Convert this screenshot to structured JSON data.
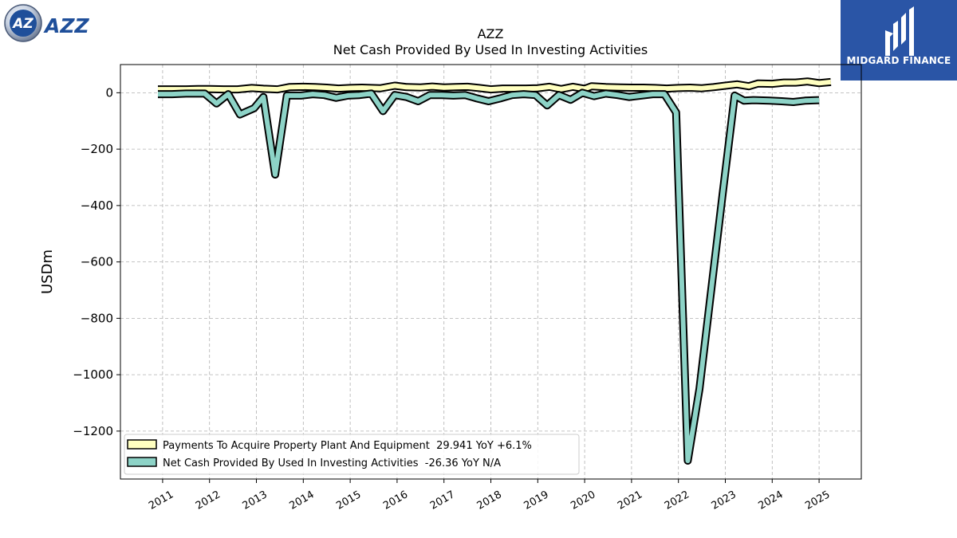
{
  "brand": {
    "ticker_logo_text": "AZZ"
  },
  "sponsor": {
    "name": "MIDGARD FINANCE"
  },
  "chart_data": {
    "type": "line",
    "title": "AZZ",
    "subtitle": "Net Cash Provided By Used In Investing Activities",
    "xlabel": "",
    "ylabel": "USDm",
    "ylim": [
      -1370,
      100
    ],
    "xlim": [
      2010.1,
      2025.9
    ],
    "yticks": [
      0,
      -200,
      -400,
      -600,
      -800,
      -1000,
      -1200
    ],
    "ytick_labels": [
      "0",
      "−200",
      "−400",
      "−600",
      "−800",
      "−1000",
      "−1200"
    ],
    "xticks": [
      "2011",
      "2012",
      "2013",
      "2014",
      "2015",
      "2016",
      "2017",
      "2018",
      "2019",
      "2020",
      "2021",
      "2022",
      "2023",
      "2024",
      "2025"
    ],
    "grid": true,
    "legend_position": "lower-left",
    "series": [
      {
        "name": "Payments To Acquire Property Plant And Equipment  29.941 YoY +6.1%",
        "color": "#ffffc0",
        "x": [
          2010.9,
          2011.2,
          2011.5,
          2011.75,
          2012.0,
          2012.3,
          2012.6,
          2012.9,
          2013.15,
          2013.45,
          2013.7,
          2014.0,
          2014.25,
          2014.5,
          2014.75,
          2015.0,
          2015.25,
          2015.65,
          2015.95,
          2016.2,
          2016.5,
          2016.75,
          2017.0,
          2017.25,
          2017.5,
          2017.75,
          2018.0,
          2018.25,
          2018.5,
          2018.75,
          2019.0,
          2019.25,
          2019.5,
          2019.75,
          2020.0,
          2020.15,
          2020.45,
          2020.75,
          2021.0,
          2021.25,
          2021.5,
          2021.75,
          2022.0,
          2022.25,
          2022.5,
          2022.75,
          2023.0,
          2023.25,
          2023.5,
          2023.7,
          2024.0,
          2024.25,
          2024.5,
          2024.75,
          2025.0,
          2025.25
        ],
        "values": [
          12,
          12,
          12,
          13,
          13,
          12,
          12,
          17,
          14,
          12,
          20,
          21,
          20,
          18,
          15,
          17,
          18,
          16,
          25,
          20,
          19,
          22,
          19,
          20,
          21,
          17,
          12,
          15,
          15,
          15,
          16,
          21,
          13,
          21,
          14,
          23,
          20,
          19,
          18,
          18,
          17,
          15,
          17,
          18,
          16,
          20,
          25,
          30,
          23,
          33,
          32,
          36,
          36,
          40,
          34,
          38
        ]
      },
      {
        "name": "Net Cash Provided By Used In Investing Activities  -26.36 YoY N/A",
        "color": "#8dd3c7",
        "x": [
          2010.9,
          2011.2,
          2011.5,
          2011.9,
          2012.15,
          2012.4,
          2012.65,
          2012.95,
          2013.15,
          2013.4,
          2013.65,
          2013.95,
          2014.2,
          2014.45,
          2014.7,
          2014.95,
          2015.2,
          2015.45,
          2015.7,
          2015.95,
          2016.2,
          2016.45,
          2016.7,
          2016.95,
          2017.2,
          2017.45,
          2017.7,
          2017.95,
          2018.2,
          2018.45,
          2018.7,
          2018.95,
          2019.2,
          2019.45,
          2019.7,
          2019.95,
          2020.2,
          2020.45,
          2020.7,
          2020.95,
          2021.2,
          2021.45,
          2021.7,
          2021.95,
          2022.2,
          2022.45,
          2022.7,
          2022.95,
          2023.2,
          2023.4,
          2023.6,
          2023.95,
          2024.2,
          2024.45,
          2024.7,
          2025.0
        ],
        "values": [
          -5,
          -5,
          -3,
          -3,
          -38,
          -5,
          -77,
          -55,
          -15,
          -290,
          -10,
          -10,
          -5,
          -8,
          -18,
          -10,
          -8,
          -3,
          -65,
          -8,
          -15,
          -30,
          -8,
          -8,
          -10,
          -8,
          -20,
          -30,
          -20,
          -8,
          -5,
          -8,
          -45,
          -8,
          -25,
          0,
          -12,
          -3,
          -8,
          -15,
          -10,
          -5,
          -5,
          -70,
          -1305,
          -1050,
          -700,
          -350,
          -10,
          -28,
          -26,
          -28,
          -30,
          -33,
          -28,
          -26
        ]
      }
    ]
  }
}
